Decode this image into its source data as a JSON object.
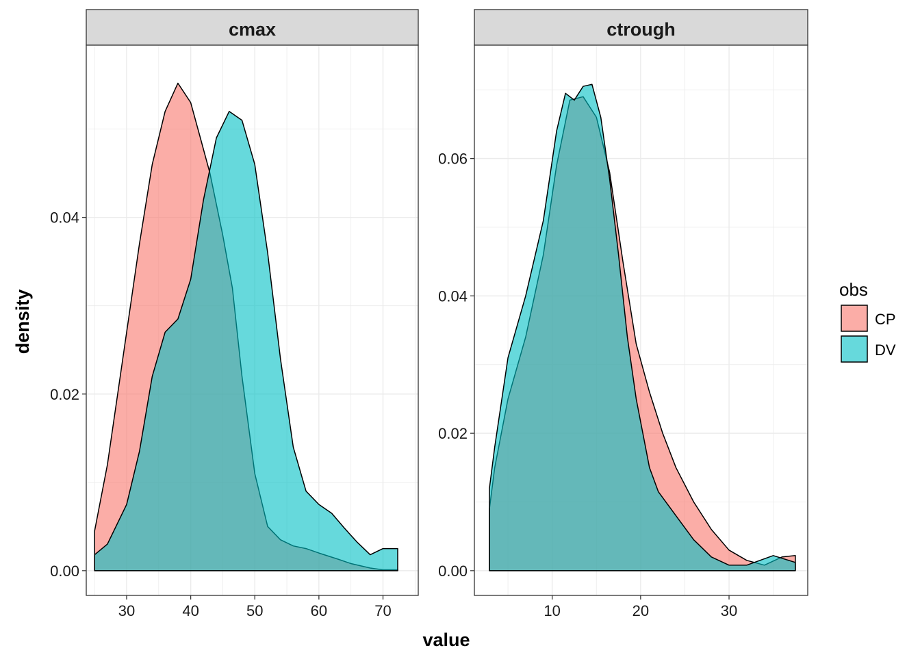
{
  "chart_data": {
    "type": "area",
    "xlabel": "value",
    "ylabel": "density",
    "legend": {
      "title": "obs",
      "position": "right",
      "entries": [
        {
          "label": "CP",
          "color": "#F8766D"
        },
        {
          "label": "DV",
          "color": "#00BFC4"
        }
      ]
    },
    "fill_alpha": 0.6,
    "colors": {
      "CP": "#F8766D",
      "DV": "#00BFC4",
      "overlap": "#66B3B0",
      "strip_bg": "#D9D9D9",
      "grid": "#EBEBEB"
    },
    "grid": true,
    "panels": [
      {
        "strip": "cmax",
        "xlim": [
          23.7,
          75.5
        ],
        "ylim": [
          -0.0028,
          0.0595
        ],
        "x_ticks": [
          30,
          40,
          50,
          60,
          70
        ],
        "x_tick_labels": [
          "30",
          "40",
          "50",
          "60",
          "70"
        ],
        "y_ticks": [
          0.0,
          0.02,
          0.04
        ],
        "y_tick_labels": [
          "0.00",
          "0.02",
          "0.04"
        ],
        "series": [
          {
            "name": "CP",
            "x": [
              25,
              27,
              30,
              32,
              34,
              36,
              38,
              40,
              41.5,
              43,
              45,
              46.5,
              48,
              50,
              52,
              54,
              56,
              58,
              60,
              63,
              65,
              68,
              70,
              72.3
            ],
            "y": [
              0.0045,
              0.012,
              0.027,
              0.037,
              0.046,
              0.052,
              0.0552,
              0.053,
              0.049,
              0.045,
              0.038,
              0.032,
              0.022,
              0.011,
              0.005,
              0.0035,
              0.0028,
              0.0025,
              0.002,
              0.0013,
              0.0008,
              0.0003,
              0.0001,
              0.0001
            ]
          },
          {
            "name": "DV",
            "x": [
              25,
              27,
              30,
              32,
              34,
              36,
              38,
              40,
              42,
              44,
              46,
              48,
              50,
              52,
              54,
              56,
              58,
              60,
              62,
              64,
              66,
              68,
              70,
              72.3
            ],
            "y": [
              0.0018,
              0.003,
              0.0075,
              0.0135,
              0.022,
              0.027,
              0.0285,
              0.033,
              0.042,
              0.049,
              0.052,
              0.051,
              0.046,
              0.036,
              0.024,
              0.014,
              0.009,
              0.0075,
              0.0065,
              0.0048,
              0.0032,
              0.0018,
              0.0025,
              0.0025
            ]
          }
        ]
      },
      {
        "strip": "ctrough",
        "xlim": [
          1.2,
          38.9
        ],
        "ylim": [
          -0.0036,
          0.0765
        ],
        "x_ticks": [
          10,
          20,
          30
        ],
        "x_tick_labels": [
          "10",
          "20",
          "30"
        ],
        "y_ticks": [
          0.0,
          0.02,
          0.04,
          0.06
        ],
        "y_tick_labels": [
          "0.00",
          "0.02",
          "0.04",
          "0.06"
        ],
        "series": [
          {
            "name": "CP",
            "x": [
              2.9,
              3.5,
              5,
              7,
              9,
              10.5,
              12,
              13.5,
              15,
              16.5,
              18,
              19.5,
              21,
              22.5,
              24,
              26,
              28,
              30,
              32,
              34,
              36,
              37.5
            ],
            "y": [
              0.009,
              0.015,
              0.025,
              0.034,
              0.046,
              0.059,
              0.0685,
              0.069,
              0.066,
              0.058,
              0.045,
              0.033,
              0.026,
              0.02,
              0.015,
              0.01,
              0.006,
              0.003,
              0.0015,
              0.0008,
              0.002,
              0.0022
            ]
          },
          {
            "name": "DV",
            "x": [
              2.9,
              3.5,
              5,
              7,
              9,
              10.5,
              11.5,
              12.5,
              13.5,
              14.5,
              15.5,
              16.5,
              17.5,
              18.5,
              19.5,
              21,
              22,
              24,
              26,
              28,
              30,
              32,
              33.5,
              35,
              37.5
            ],
            "y": [
              0.012,
              0.018,
              0.031,
              0.04,
              0.051,
              0.064,
              0.0695,
              0.0685,
              0.0705,
              0.0708,
              0.066,
              0.057,
              0.046,
              0.034,
              0.025,
              0.015,
              0.0115,
              0.008,
              0.0045,
              0.002,
              0.0008,
              0.0008,
              0.0015,
              0.0022,
              0.0012
            ]
          }
        ]
      }
    ]
  }
}
